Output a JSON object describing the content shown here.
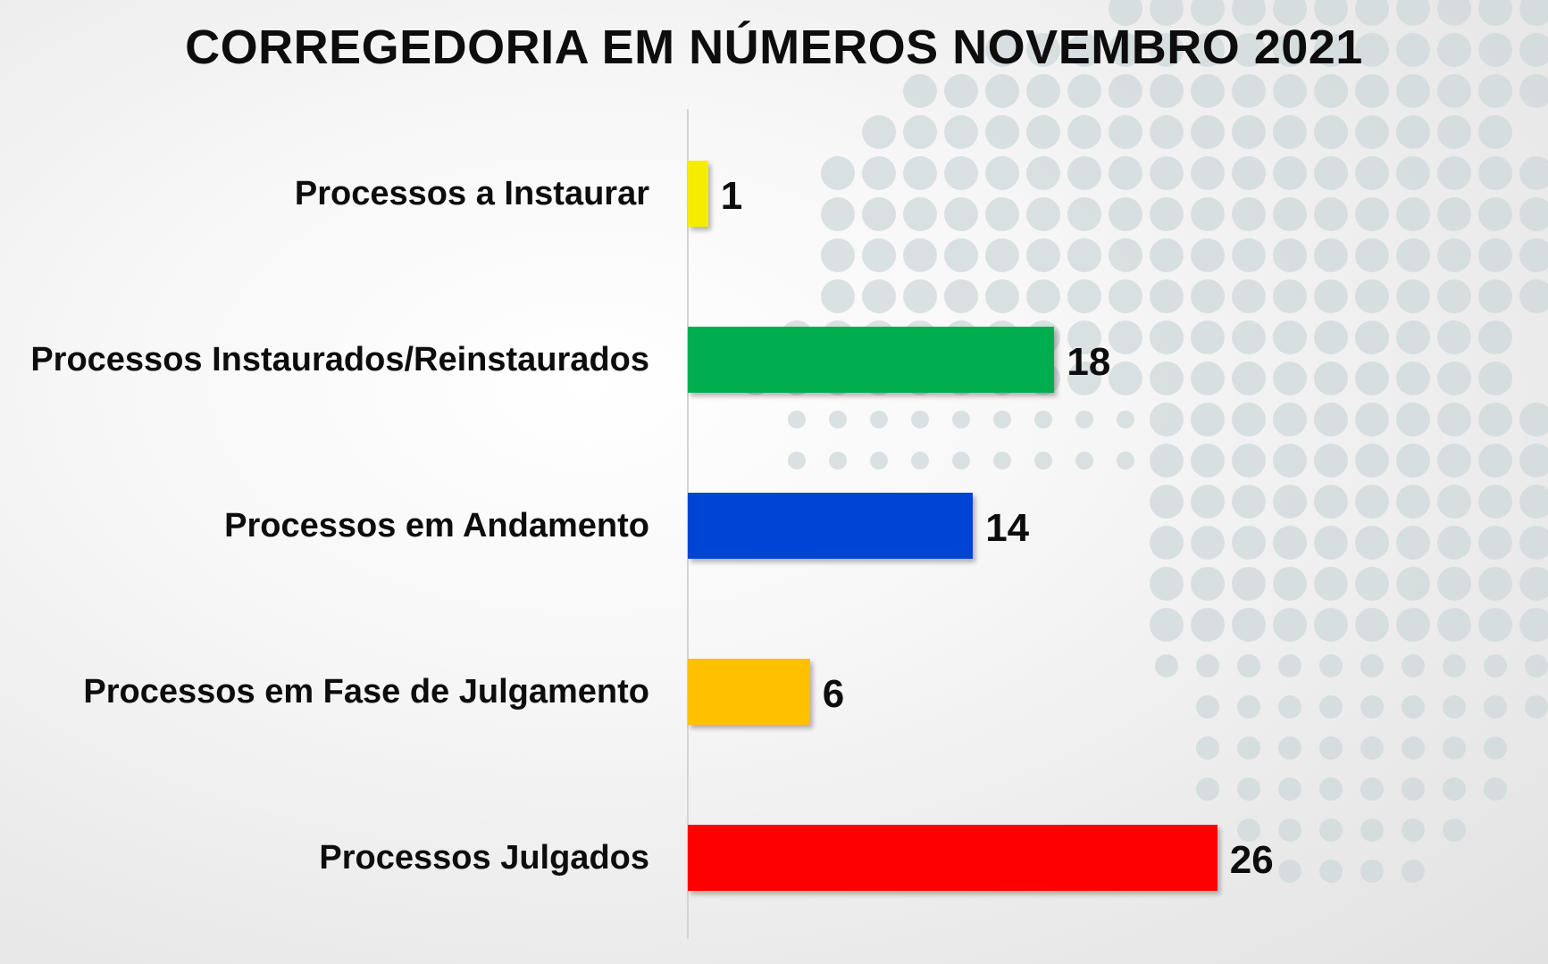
{
  "chart_data": {
    "type": "bar",
    "orientation": "horizontal",
    "title": "CORREGEDORIA EM NÚMEROS NOVEMBRO 2021",
    "categories": [
      "Processos a Instaurar",
      "Processos Instaurados/Reinstaurados",
      "Processos em Andamento",
      "Processos em Fase de Julgamento",
      "Processos Julgados"
    ],
    "values": [
      1,
      18,
      14,
      6,
      26
    ],
    "value_labels": [
      "1",
      "18",
      "14",
      "6",
      "26"
    ],
    "colors": [
      "#f5ec00",
      "#00ae4f",
      "#0044d6",
      "#ffc000",
      "#ff0000"
    ],
    "xlim": [
      0,
      26
    ],
    "grid": false,
    "legend": "none",
    "data_labels": "outside-end"
  },
  "background": {
    "base_color": "#efefef",
    "pattern": "halftone world map dots",
    "dot_color": "#cfd8da"
  }
}
